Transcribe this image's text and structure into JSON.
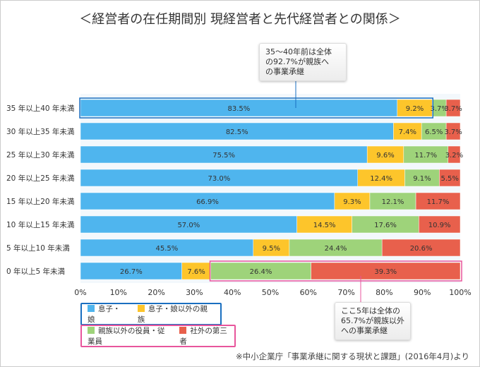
{
  "title": "＜経営者の在任期間別 現経営者と先代経営者との関係＞",
  "chart_data": {
    "type": "bar",
    "orientation": "horizontal",
    "stacked": "percent",
    "categories": [
      "35年以上40年未満",
      "30年以上35年未満",
      "25年以上30年未満",
      "20年以上25年未満",
      "15年以上20年未満",
      "10年以上15年未満",
      "5年以上10年未満",
      "0年以上5年未満"
    ],
    "series": [
      {
        "name": "息子・娘",
        "color": "#4fb5ee",
        "values": [
          83.5,
          82.5,
          75.5,
          73.0,
          66.9,
          57.0,
          45.5,
          26.7
        ]
      },
      {
        "name": "息子・娘以外の親族",
        "color": "#fdc52b",
        "values": [
          9.2,
          7.4,
          9.6,
          12.4,
          9.3,
          14.5,
          9.5,
          7.6
        ]
      },
      {
        "name": "親族以外の役員・従業員",
        "color": "#9ed37a",
        "values": [
          3.7,
          6.5,
          11.7,
          9.1,
          12.1,
          17.6,
          24.4,
          26.4
        ]
      },
      {
        "name": "社外の第三者",
        "color": "#e8604c",
        "values": [
          3.7,
          3.7,
          3.2,
          5.5,
          11.7,
          10.9,
          20.6,
          39.3
        ]
      }
    ],
    "xticks": [
      "0%",
      "10%",
      "20%",
      "30%",
      "40%",
      "50%",
      "60%",
      "70%",
      "80%",
      "90%",
      "100%"
    ],
    "xlim": [
      0,
      100
    ],
    "legend": "bottom-left",
    "annotations": [
      {
        "text": "35～40年前は全体\nの92.7%が親族へ\nの事業承継",
        "highlight_color": "#1a6fc0"
      },
      {
        "text": "ここ5年は全体の\n65.7%が親族以外\nへの事業承継",
        "highlight_color": "#e8559c"
      }
    ]
  },
  "source": "※中小企業庁「事業承継に関する現状と課題」(2016年4月)より"
}
